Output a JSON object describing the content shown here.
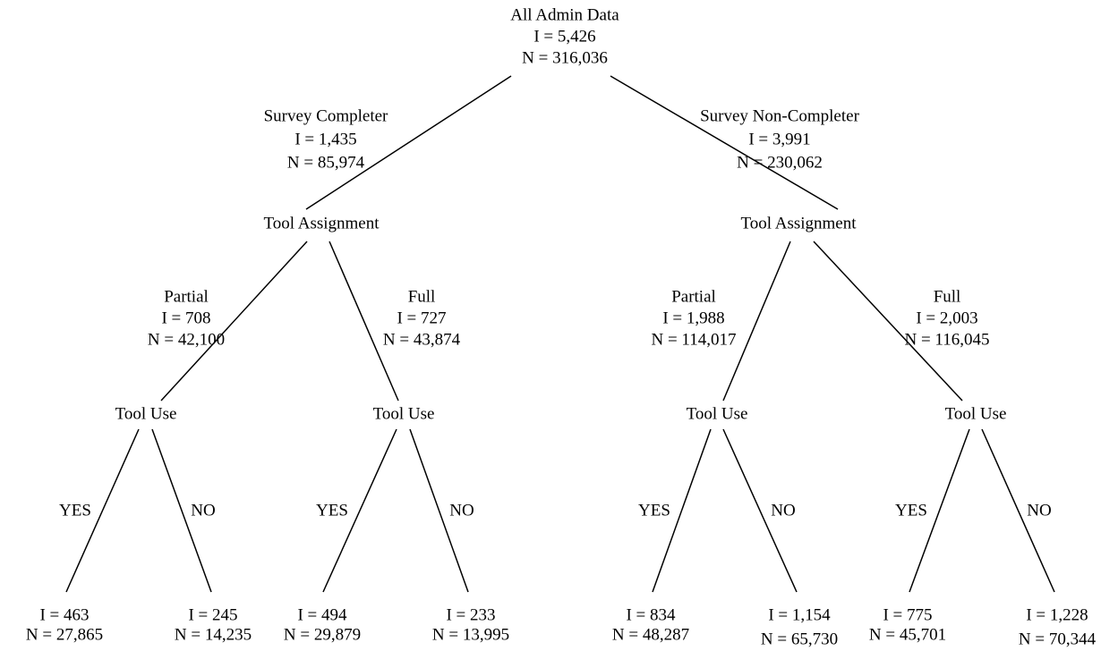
{
  "nodes": [
    {
      "lines": [
        "All Admin Data",
        "I = 5,426",
        "N = 316,036"
      ]
    },
    {
      "lines": [
        "Survey Completer",
        "I = 1,435",
        "N = 85,974"
      ]
    },
    {
      "lines": [
        "Survey Non-Completer",
        "I = 3,991",
        "N = 230,062"
      ]
    },
    {
      "lines": [
        "Tool Assignment"
      ]
    },
    {
      "lines": [
        "Tool Assignment"
      ]
    },
    {
      "lines": [
        "Partial",
        "I = 708",
        "N = 42,100"
      ]
    },
    {
      "lines": [
        "Full",
        "I = 727",
        "N = 43,874"
      ]
    },
    {
      "lines": [
        "Partial",
        "I = 1,988",
        "N = 114,017"
      ]
    },
    {
      "lines": [
        "Full",
        "I = 2,003",
        "N = 116,045"
      ]
    },
    {
      "lines": [
        "Tool Use"
      ]
    },
    {
      "lines": [
        "Tool Use"
      ]
    },
    {
      "lines": [
        "Tool Use"
      ]
    },
    {
      "lines": [
        "Tool Use"
      ]
    },
    {
      "lines": [
        "I = 463",
        "N = 27,865"
      ]
    },
    {
      "lines": [
        "I = 245",
        "N = 14,235"
      ]
    },
    {
      "lines": [
        "I = 494",
        "N = 29,879"
      ]
    },
    {
      "lines": [
        "I = 233",
        "N = 13,995"
      ]
    },
    {
      "lines": [
        "I = 834",
        "N = 48,287"
      ]
    },
    {
      "lines": [
        "I = 1,154",
        "N = 65,730"
      ]
    },
    {
      "lines": [
        "I = 775",
        "N = 45,701"
      ]
    },
    {
      "lines": [
        "I = 1,228",
        "N = 70,344"
      ]
    }
  ],
  "branch_labels": [
    "YES",
    "NO",
    "YES",
    "NO",
    "YES",
    "NO",
    "YES",
    "NO"
  ]
}
